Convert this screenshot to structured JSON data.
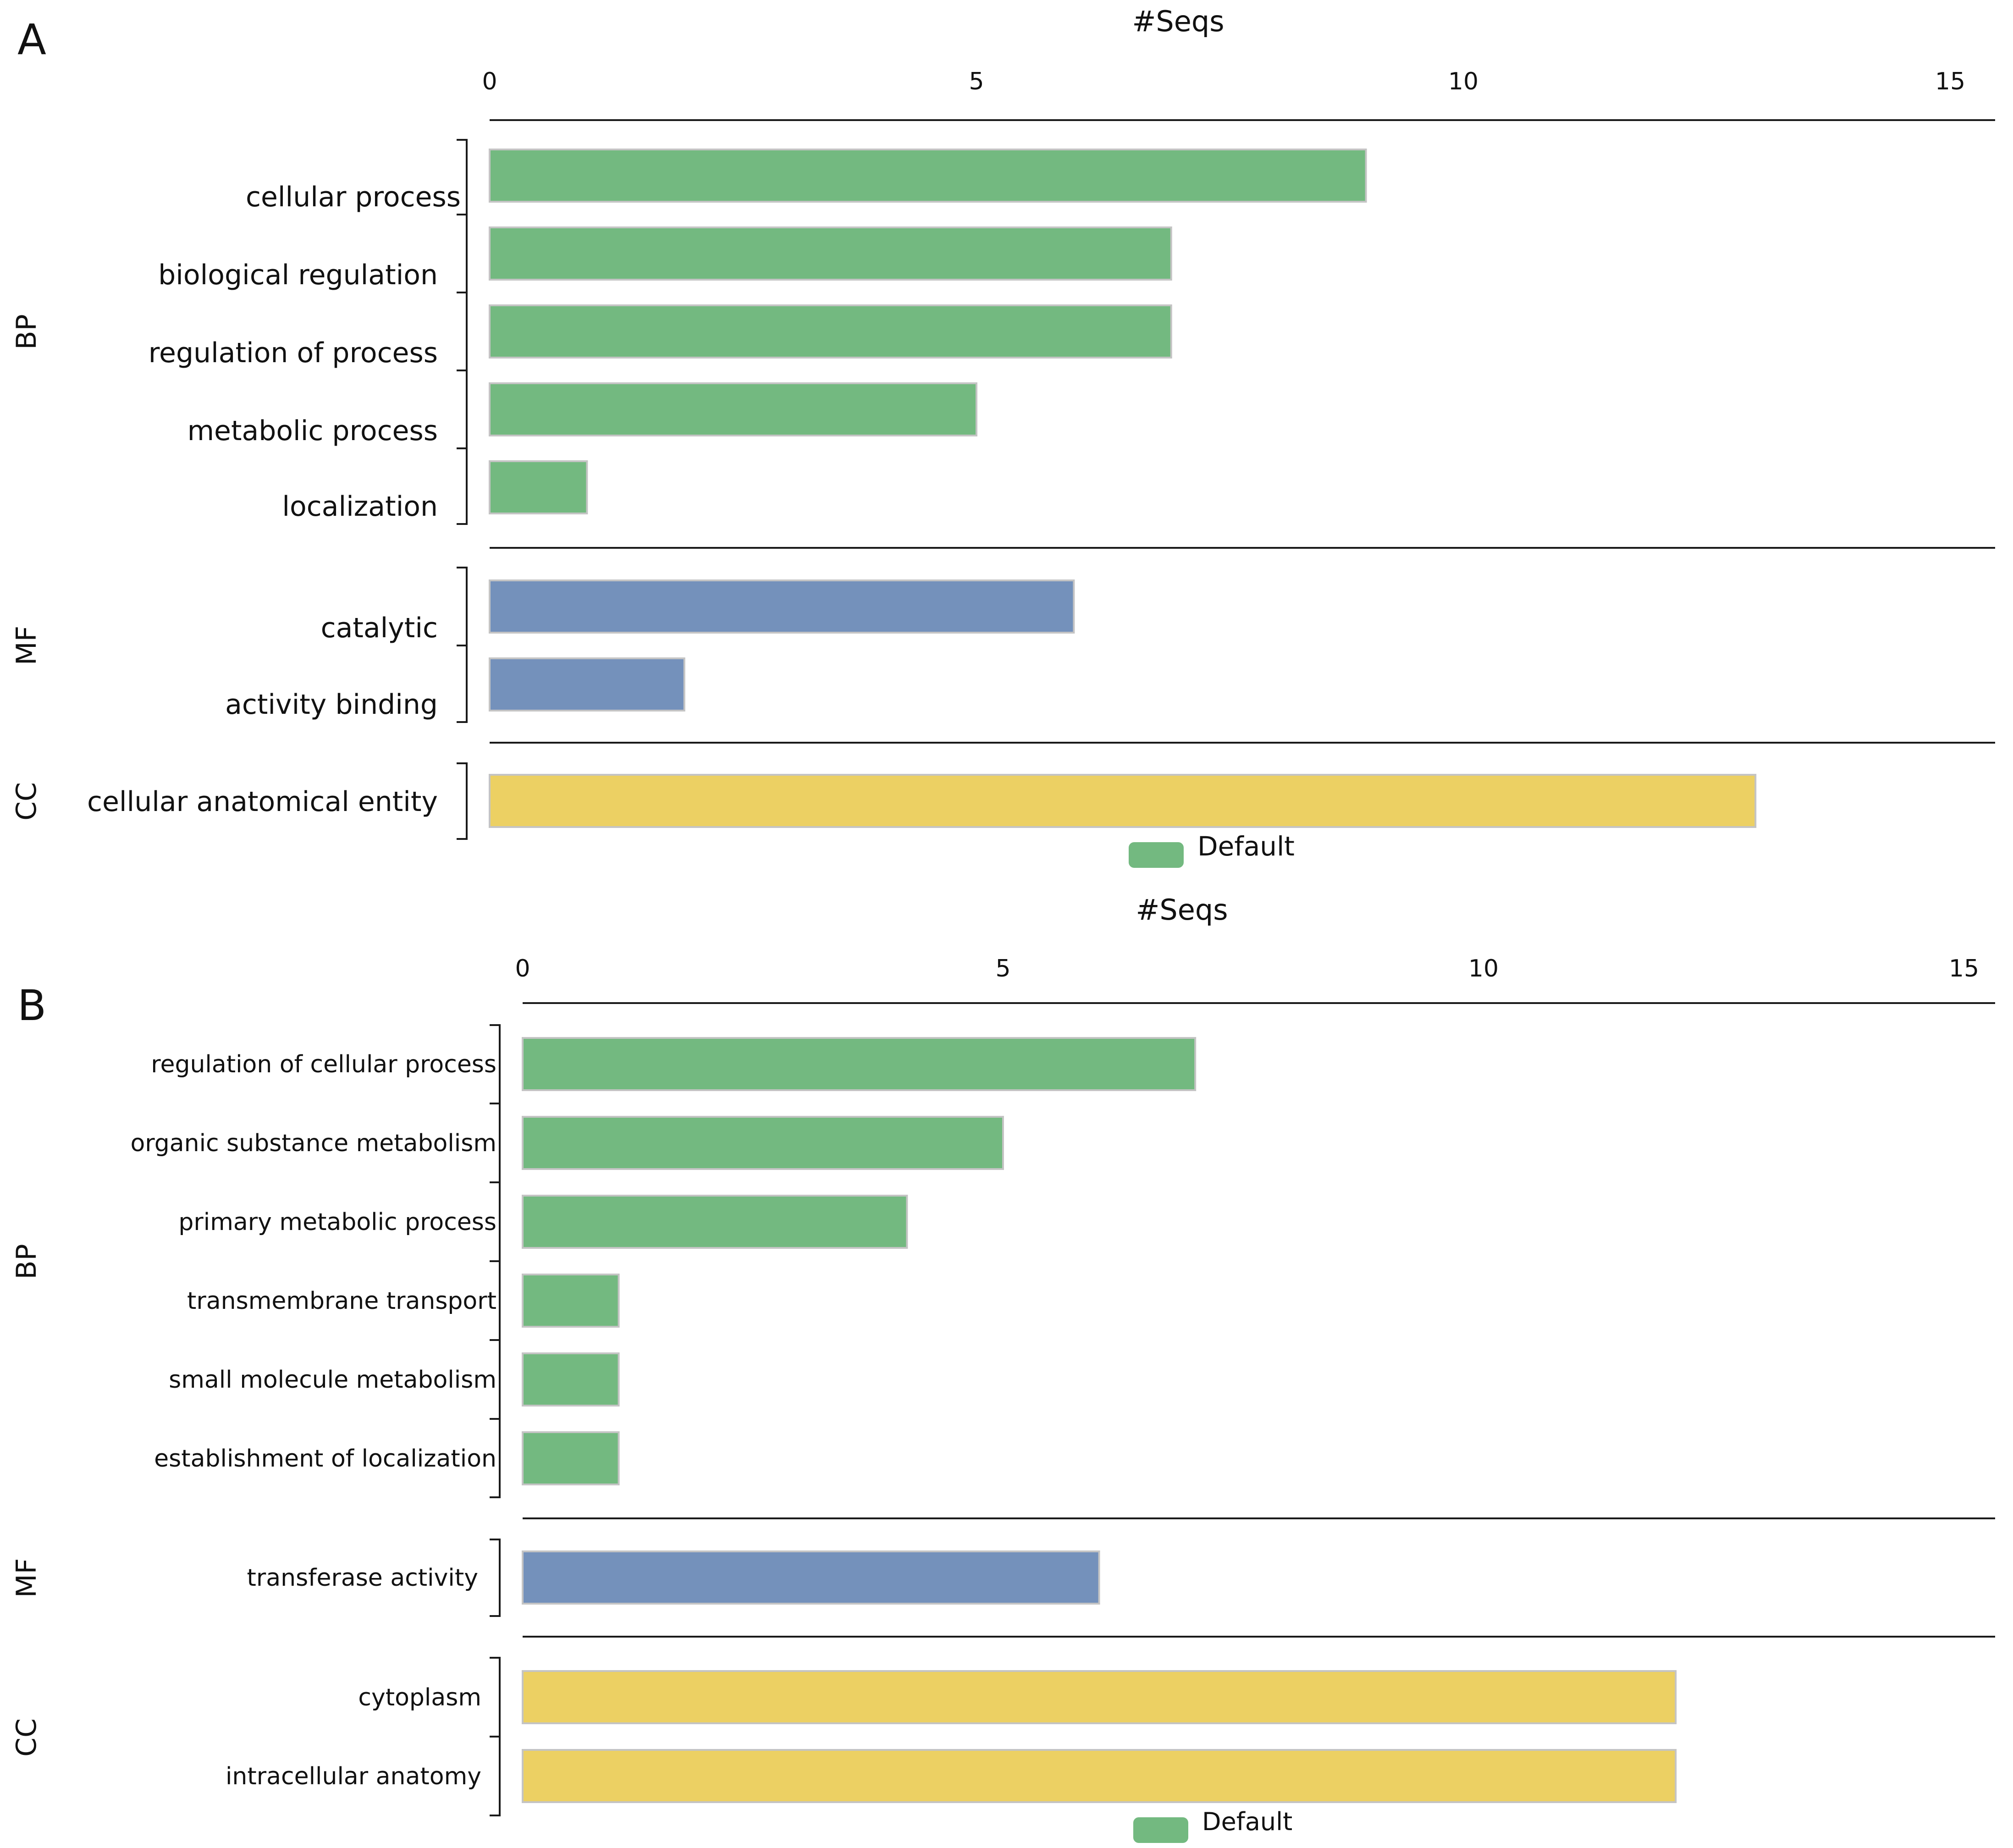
{
  "colors": {
    "BP": "#73b980",
    "MF": "#7491bb",
    "CC": "#ecd063",
    "bar_stroke": "#c4c4c4",
    "axis": "#1a1a1a",
    "legend": "#73b980"
  },
  "chart_data": [
    {
      "panel_label": "A",
      "type": "bar",
      "orientation": "horizontal",
      "title": "#Seqs",
      "xlabel": "#Seqs",
      "xlim": [
        0,
        15
      ],
      "xticks": [
        "0",
        "5",
        "10",
        "15"
      ],
      "legend": {
        "label": "Default",
        "placement": "bottom-center"
      },
      "groups": [
        {
          "name": "BP",
          "categories": [
            "cellular process",
            "biological regulation",
            "regulation of process",
            "metabolic process",
            "localization"
          ],
          "values": [
            9,
            7,
            7,
            5,
            1
          ]
        },
        {
          "name": "MF",
          "categories": [
            "catalytic",
            "activity binding"
          ],
          "values": [
            6,
            2
          ]
        },
        {
          "name": "CC",
          "categories": [
            "cellular anatomical entity"
          ],
          "values": [
            13
          ]
        }
      ]
    },
    {
      "panel_label": "B",
      "type": "bar",
      "orientation": "horizontal",
      "title": "#Seqs",
      "xlabel": "#Seqs",
      "xlim": [
        0,
        15
      ],
      "xticks": [
        "0",
        "5",
        "10",
        "15"
      ],
      "legend": {
        "label": "Default",
        "placement": "bottom-center"
      },
      "groups": [
        {
          "name": "BP",
          "categories": [
            "regulation of cellular process",
            "organic substance metabolism",
            "primary metabolic process",
            "transmembrane transport",
            "small molecule metabolism",
            "establishment of localization"
          ],
          "values": [
            7,
            5,
            4,
            1,
            1,
            1
          ]
        },
        {
          "name": "MF",
          "categories": [
            "transferase activity"
          ],
          "values": [
            6
          ]
        },
        {
          "name": "CC",
          "categories": [
            "cytoplasm",
            "intracellular anatomy"
          ],
          "values": [
            12,
            12
          ]
        }
      ]
    }
  ]
}
